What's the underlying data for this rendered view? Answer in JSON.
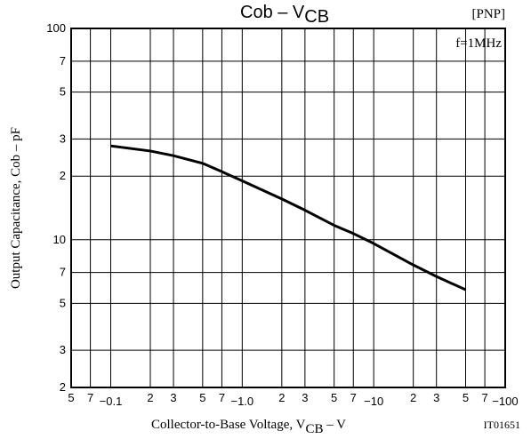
{
  "chart_data": {
    "type": "line",
    "title": [
      "Cob – V",
      "CB"
    ],
    "annotations": [
      "[PNP]",
      "f=1MHz",
      "IT01651"
    ],
    "xlabel": [
      "Collector-to-Base Voltage, V",
      "CB",
      " – V"
    ],
    "ylabel": "Output Capacitance, Cob – pF",
    "xlog": true,
    "ylog": true,
    "grid": true,
    "xlim": [
      0.05,
      100
    ],
    "ylim": [
      2,
      100
    ],
    "xticks": [
      {
        "value": 0.05,
        "label": "5"
      },
      {
        "value": 0.07,
        "label": "7"
      },
      {
        "value": 0.1,
        "label": "−0.1"
      },
      {
        "value": 0.2,
        "label": "2"
      },
      {
        "value": 0.3,
        "label": "3"
      },
      {
        "value": 0.5,
        "label": "5"
      },
      {
        "value": 0.7,
        "label": "7"
      },
      {
        "value": 1,
        "label": "−1.0"
      },
      2,
      3,
      5,
      7,
      {
        "value": 10,
        "label": "−10"
      },
      {
        "value": 20,
        "label": "2"
      },
      {
        "value": 30,
        "label": "3"
      },
      {
        "value": 50,
        "label": "5"
      },
      {
        "value": 70,
        "label": "7"
      },
      {
        "value": 100,
        "label": "−100"
      }
    ],
    "yticks": [
      2,
      3,
      5,
      7,
      10,
      {
        "value": 20,
        "label": "2"
      },
      {
        "value": 30,
        "label": "3"
      },
      {
        "value": 50,
        "label": "5"
      },
      {
        "value": 70,
        "label": "7"
      },
      100
    ],
    "x": [
      0.1,
      0.2,
      0.3,
      0.5,
      0.7,
      1,
      2,
      3,
      5,
      7,
      10,
      20,
      30,
      50
    ],
    "series": [
      {
        "color": "#000000",
        "values": [
          27.8,
          26.3,
          25,
          23,
          21,
          19,
          15.6,
          13.8,
          11.7,
          10.7,
          9.6,
          7.6,
          6.7,
          5.8
        ]
      }
    ]
  }
}
